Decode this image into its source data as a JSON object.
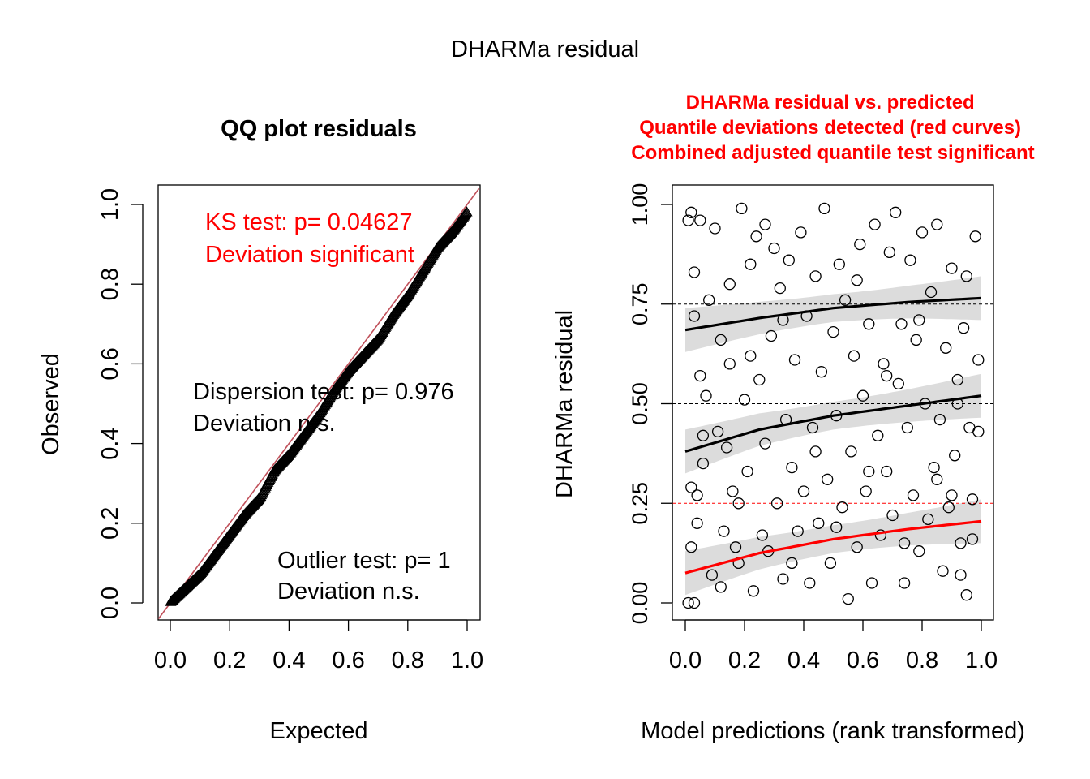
{
  "figure_title": "DHARMa residual",
  "colors": {
    "red": "#ff0000",
    "qq_line": "#c0505a",
    "band": "#d3d3d3",
    "black": "#000000"
  },
  "chart_data": [
    {
      "type": "scatter",
      "title": "QQ plot residuals",
      "xlabel": "Expected",
      "ylabel": "Observed",
      "xlim": [
        0,
        1
      ],
      "ylim": [
        0,
        1
      ],
      "x_ticks": [
        "0.0",
        "0.2",
        "0.4",
        "0.6",
        "0.8",
        "1.0"
      ],
      "y_ticks": [
        "0.0",
        "0.2",
        "0.4",
        "0.6",
        "0.8",
        "1.0"
      ],
      "reference_line": {
        "from": [
          0,
          0
        ],
        "to": [
          1,
          1
        ]
      },
      "observed_vs_expected": [
        [
          0.0,
          0.0
        ],
        [
          0.05,
          0.035
        ],
        [
          0.1,
          0.07
        ],
        [
          0.15,
          0.12
        ],
        [
          0.2,
          0.17
        ],
        [
          0.25,
          0.22
        ],
        [
          0.3,
          0.26
        ],
        [
          0.35,
          0.33
        ],
        [
          0.4,
          0.37
        ],
        [
          0.45,
          0.42
        ],
        [
          0.5,
          0.47
        ],
        [
          0.55,
          0.53
        ],
        [
          0.6,
          0.58
        ],
        [
          0.65,
          0.62
        ],
        [
          0.7,
          0.66
        ],
        [
          0.75,
          0.72
        ],
        [
          0.8,
          0.77
        ],
        [
          0.85,
          0.83
        ],
        [
          0.9,
          0.89
        ],
        [
          0.95,
          0.93
        ],
        [
          1.0,
          0.98
        ]
      ],
      "annotations": [
        {
          "lines": [
            "KS test: p= 0.04627",
            "Deviation  significant"
          ],
          "color": "#ff0000"
        },
        {
          "lines": [
            "Dispersion test: p= 0.976",
            "Deviation  n.s."
          ],
          "color": "#000000"
        },
        {
          "lines": [
            "Outlier test: p= 1",
            "Deviation  n.s."
          ],
          "color": "#000000"
        }
      ]
    },
    {
      "type": "scatter",
      "title_lines": [
        "DHARMa residual vs. predicted",
        "Quantile deviations detected (red curves)",
        "Combined adjusted quantile test significant"
      ],
      "title_color": "#ff0000",
      "xlabel": "Model predictions (rank transformed)",
      "ylabel": "DHARMa residual",
      "xlim": [
        0,
        1
      ],
      "ylim": [
        0,
        1
      ],
      "x_ticks": [
        "0.0",
        "0.2",
        "0.4",
        "0.6",
        "0.8",
        "1.0"
      ],
      "y_ticks": [
        "0.00",
        "0.25",
        "0.50",
        "0.75",
        "1.00"
      ],
      "reference_lines": [
        {
          "y": 0.25,
          "color": "#ff0000"
        },
        {
          "y": 0.5,
          "color": "#000000"
        },
        {
          "y": 0.75,
          "color": "#000000"
        }
      ],
      "quantile_curves": [
        {
          "quantile": 0.25,
          "color": "#ff0000",
          "x": [
            0,
            0.25,
            0.5,
            0.75,
            1
          ],
          "y": [
            0.075,
            0.125,
            0.16,
            0.185,
            0.205
          ]
        },
        {
          "quantile": 0.5,
          "color": "#000000",
          "x": [
            0,
            0.25,
            0.5,
            0.75,
            1
          ],
          "y": [
            0.38,
            0.435,
            0.47,
            0.495,
            0.52
          ]
        },
        {
          "quantile": 0.75,
          "color": "#000000",
          "x": [
            0,
            0.25,
            0.5,
            0.75,
            1
          ],
          "y": [
            0.685,
            0.715,
            0.74,
            0.755,
            0.765
          ]
        }
      ],
      "points": [
        [
          0.01,
          0.96
        ],
        [
          0.02,
          0.98
        ],
        [
          0.03,
          0.83
        ],
        [
          0.03,
          0.72
        ],
        [
          0.05,
          0.96
        ],
        [
          0.06,
          0.42
        ],
        [
          0.05,
          0.57
        ],
        [
          0.02,
          0.29
        ],
        [
          0.04,
          0.27
        ],
        [
          0.02,
          0.14
        ],
        [
          0.01,
          0.0
        ],
        [
          0.03,
          0.0
        ],
        [
          0.04,
          0.2
        ],
        [
          0.06,
          0.35
        ],
        [
          0.08,
          0.76
        ],
        [
          0.09,
          0.07
        ],
        [
          0.1,
          0.94
        ],
        [
          0.11,
          0.43
        ],
        [
          0.12,
          0.04
        ],
        [
          0.13,
          0.18
        ],
        [
          0.14,
          0.39
        ],
        [
          0.15,
          0.6
        ],
        [
          0.15,
          0.8
        ],
        [
          0.16,
          0.28
        ],
        [
          0.17,
          0.14
        ],
        [
          0.18,
          0.1
        ],
        [
          0.19,
          0.99
        ],
        [
          0.2,
          0.51
        ],
        [
          0.21,
          0.33
        ],
        [
          0.22,
          0.62
        ],
        [
          0.23,
          0.03
        ],
        [
          0.24,
          0.92
        ],
        [
          0.25,
          0.56
        ],
        [
          0.26,
          0.17
        ],
        [
          0.27,
          0.4
        ],
        [
          0.28,
          0.13
        ],
        [
          0.29,
          0.67
        ],
        [
          0.3,
          0.89
        ],
        [
          0.31,
          0.25
        ],
        [
          0.32,
          0.79
        ],
        [
          0.33,
          0.06
        ],
        [
          0.34,
          0.46
        ],
        [
          0.35,
          0.86
        ],
        [
          0.36,
          0.34
        ],
        [
          0.37,
          0.61
        ],
        [
          0.38,
          0.18
        ],
        [
          0.39,
          0.93
        ],
        [
          0.4,
          0.28
        ],
        [
          0.41,
          0.72
        ],
        [
          0.42,
          0.05
        ],
        [
          0.43,
          0.44
        ],
        [
          0.44,
          0.82
        ],
        [
          0.45,
          0.2
        ],
        [
          0.46,
          0.58
        ],
        [
          0.47,
          0.99
        ],
        [
          0.48,
          0.31
        ],
        [
          0.49,
          0.1
        ],
        [
          0.5,
          0.68
        ],
        [
          0.51,
          0.47
        ],
        [
          0.52,
          0.85
        ],
        [
          0.53,
          0.24
        ],
        [
          0.54,
          0.76
        ],
        [
          0.55,
          0.01
        ],
        [
          0.56,
          0.38
        ],
        [
          0.57,
          0.62
        ],
        [
          0.58,
          0.14
        ],
        [
          0.59,
          0.9
        ],
        [
          0.6,
          0.52
        ],
        [
          0.61,
          0.28
        ],
        [
          0.62,
          0.7
        ],
        [
          0.63,
          0.05
        ],
        [
          0.64,
          0.95
        ],
        [
          0.65,
          0.42
        ],
        [
          0.66,
          0.17
        ],
        [
          0.67,
          0.6
        ],
        [
          0.68,
          0.33
        ],
        [
          0.69,
          0.88
        ],
        [
          0.7,
          0.22
        ],
        [
          0.71,
          0.98
        ],
        [
          0.72,
          0.55
        ],
        [
          0.73,
          0.7
        ],
        [
          0.74,
          0.05
        ],
        [
          0.75,
          0.44
        ],
        [
          0.76,
          0.86
        ],
        [
          0.77,
          0.27
        ],
        [
          0.78,
          0.66
        ],
        [
          0.79,
          0.13
        ],
        [
          0.8,
          0.93
        ],
        [
          0.81,
          0.5
        ],
        [
          0.82,
          0.21
        ],
        [
          0.83,
          0.78
        ],
        [
          0.84,
          0.34
        ],
        [
          0.85,
          0.95
        ],
        [
          0.86,
          0.46
        ],
        [
          0.87,
          0.08
        ],
        [
          0.88,
          0.64
        ],
        [
          0.89,
          0.24
        ],
        [
          0.9,
          0.84
        ],
        [
          0.91,
          0.37
        ],
        [
          0.92,
          0.56
        ],
        [
          0.93,
          0.15
        ],
        [
          0.94,
          0.69
        ],
        [
          0.95,
          0.02
        ],
        [
          0.96,
          0.44
        ],
        [
          0.97,
          0.26
        ],
        [
          0.98,
          0.92
        ],
        [
          0.99,
          0.61
        ],
        [
          0.99,
          0.43
        ],
        [
          0.97,
          0.16
        ],
        [
          0.95,
          0.82
        ],
        [
          0.93,
          0.07
        ],
        [
          0.9,
          0.27
        ],
        [
          0.07,
          0.52
        ],
        [
          0.12,
          0.66
        ],
        [
          0.18,
          0.25
        ],
        [
          0.22,
          0.85
        ],
        [
          0.27,
          0.95
        ],
        [
          0.33,
          0.71
        ],
        [
          0.36,
          0.1
        ],
        [
          0.44,
          0.38
        ],
        [
          0.51,
          0.19
        ],
        [
          0.58,
          0.81
        ],
        [
          0.62,
          0.33
        ],
        [
          0.68,
          0.57
        ],
        [
          0.74,
          0.15
        ],
        [
          0.79,
          0.71
        ],
        [
          0.85,
          0.31
        ],
        [
          0.92,
          0.5
        ]
      ]
    }
  ]
}
